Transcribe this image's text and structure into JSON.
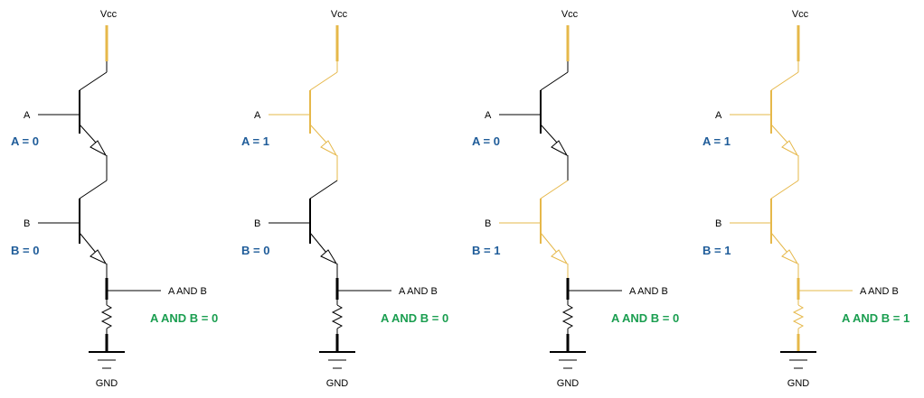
{
  "colors": {
    "off": "#000000",
    "on": "#E6B84A",
    "input_state": "#1F5C99",
    "output_state": "#1A9E50"
  },
  "circuits": [
    {
      "vcc": "Vcc",
      "gnd": "GND",
      "a_label": "A",
      "b_label": "B",
      "out_label": "A AND B",
      "a_state": "A = 0",
      "b_state": "B = 0",
      "out_state": "A AND B = 0",
      "a_on": false,
      "b_on": false
    },
    {
      "vcc": "Vcc",
      "gnd": "GND",
      "a_label": "A",
      "b_label": "B",
      "out_label": "A AND B",
      "a_state": "A = 1",
      "b_state": "B = 0",
      "out_state": "A AND B = 0",
      "a_on": true,
      "b_on": false
    },
    {
      "vcc": "Vcc",
      "gnd": "GND",
      "a_label": "A",
      "b_label": "B",
      "out_label": "A AND B",
      "a_state": "A = 0",
      "b_state": "B = 1",
      "out_state": "A AND B = 0",
      "a_on": false,
      "b_on": true
    },
    {
      "vcc": "Vcc",
      "gnd": "GND",
      "a_label": "A",
      "b_label": "B",
      "out_label": "A AND B",
      "a_state": "A = 1",
      "b_state": "B = 1",
      "out_state": "A AND B = 1",
      "a_on": true,
      "b_on": true
    }
  ]
}
